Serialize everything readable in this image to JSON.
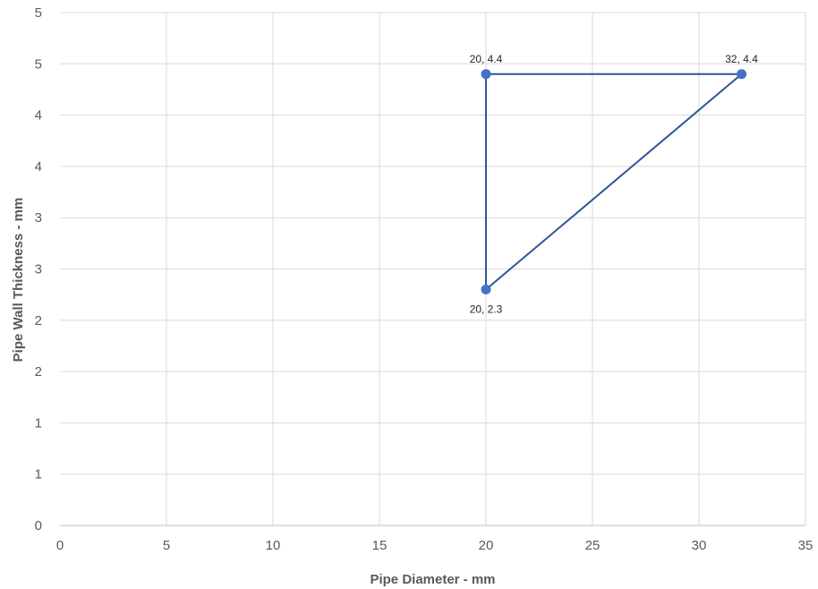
{
  "chart_data": {
    "type": "scatter",
    "title": "",
    "xlabel": "Pipe Diameter - mm",
    "ylabel": "Pipe Wall Thickness - mm",
    "xlim": [
      0,
      35
    ],
    "ylim": [
      0,
      5
    ],
    "grid": true,
    "x_ticks": [
      0,
      5,
      10,
      15,
      20,
      25,
      30,
      35
    ],
    "x_tick_labels": [
      "0",
      "5",
      "10",
      "15",
      "20",
      "25",
      "30",
      "35"
    ],
    "y_ticks": [
      0,
      0.5,
      1,
      1.5,
      2,
      2.5,
      3,
      3.5,
      4,
      4.5,
      5
    ],
    "y_tick_labels": [
      "0",
      "1",
      "1",
      "2",
      "2",
      "3",
      "3",
      "4",
      "4",
      "5",
      "5"
    ],
    "series": [
      {
        "color": "#4472c4",
        "line_color": "#2f5597",
        "points": [
          {
            "x": 20,
            "y": 2.3,
            "label": "20, 2.3",
            "label_pos": "below"
          },
          {
            "x": 20,
            "y": 4.4,
            "label": "20, 4.4",
            "label_pos": "above"
          },
          {
            "x": 32,
            "y": 4.4,
            "label": "32, 4.4",
            "label_pos": "above"
          },
          {
            "x": 20,
            "y": 2.3,
            "label": "",
            "label_pos": "none"
          }
        ]
      }
    ]
  }
}
